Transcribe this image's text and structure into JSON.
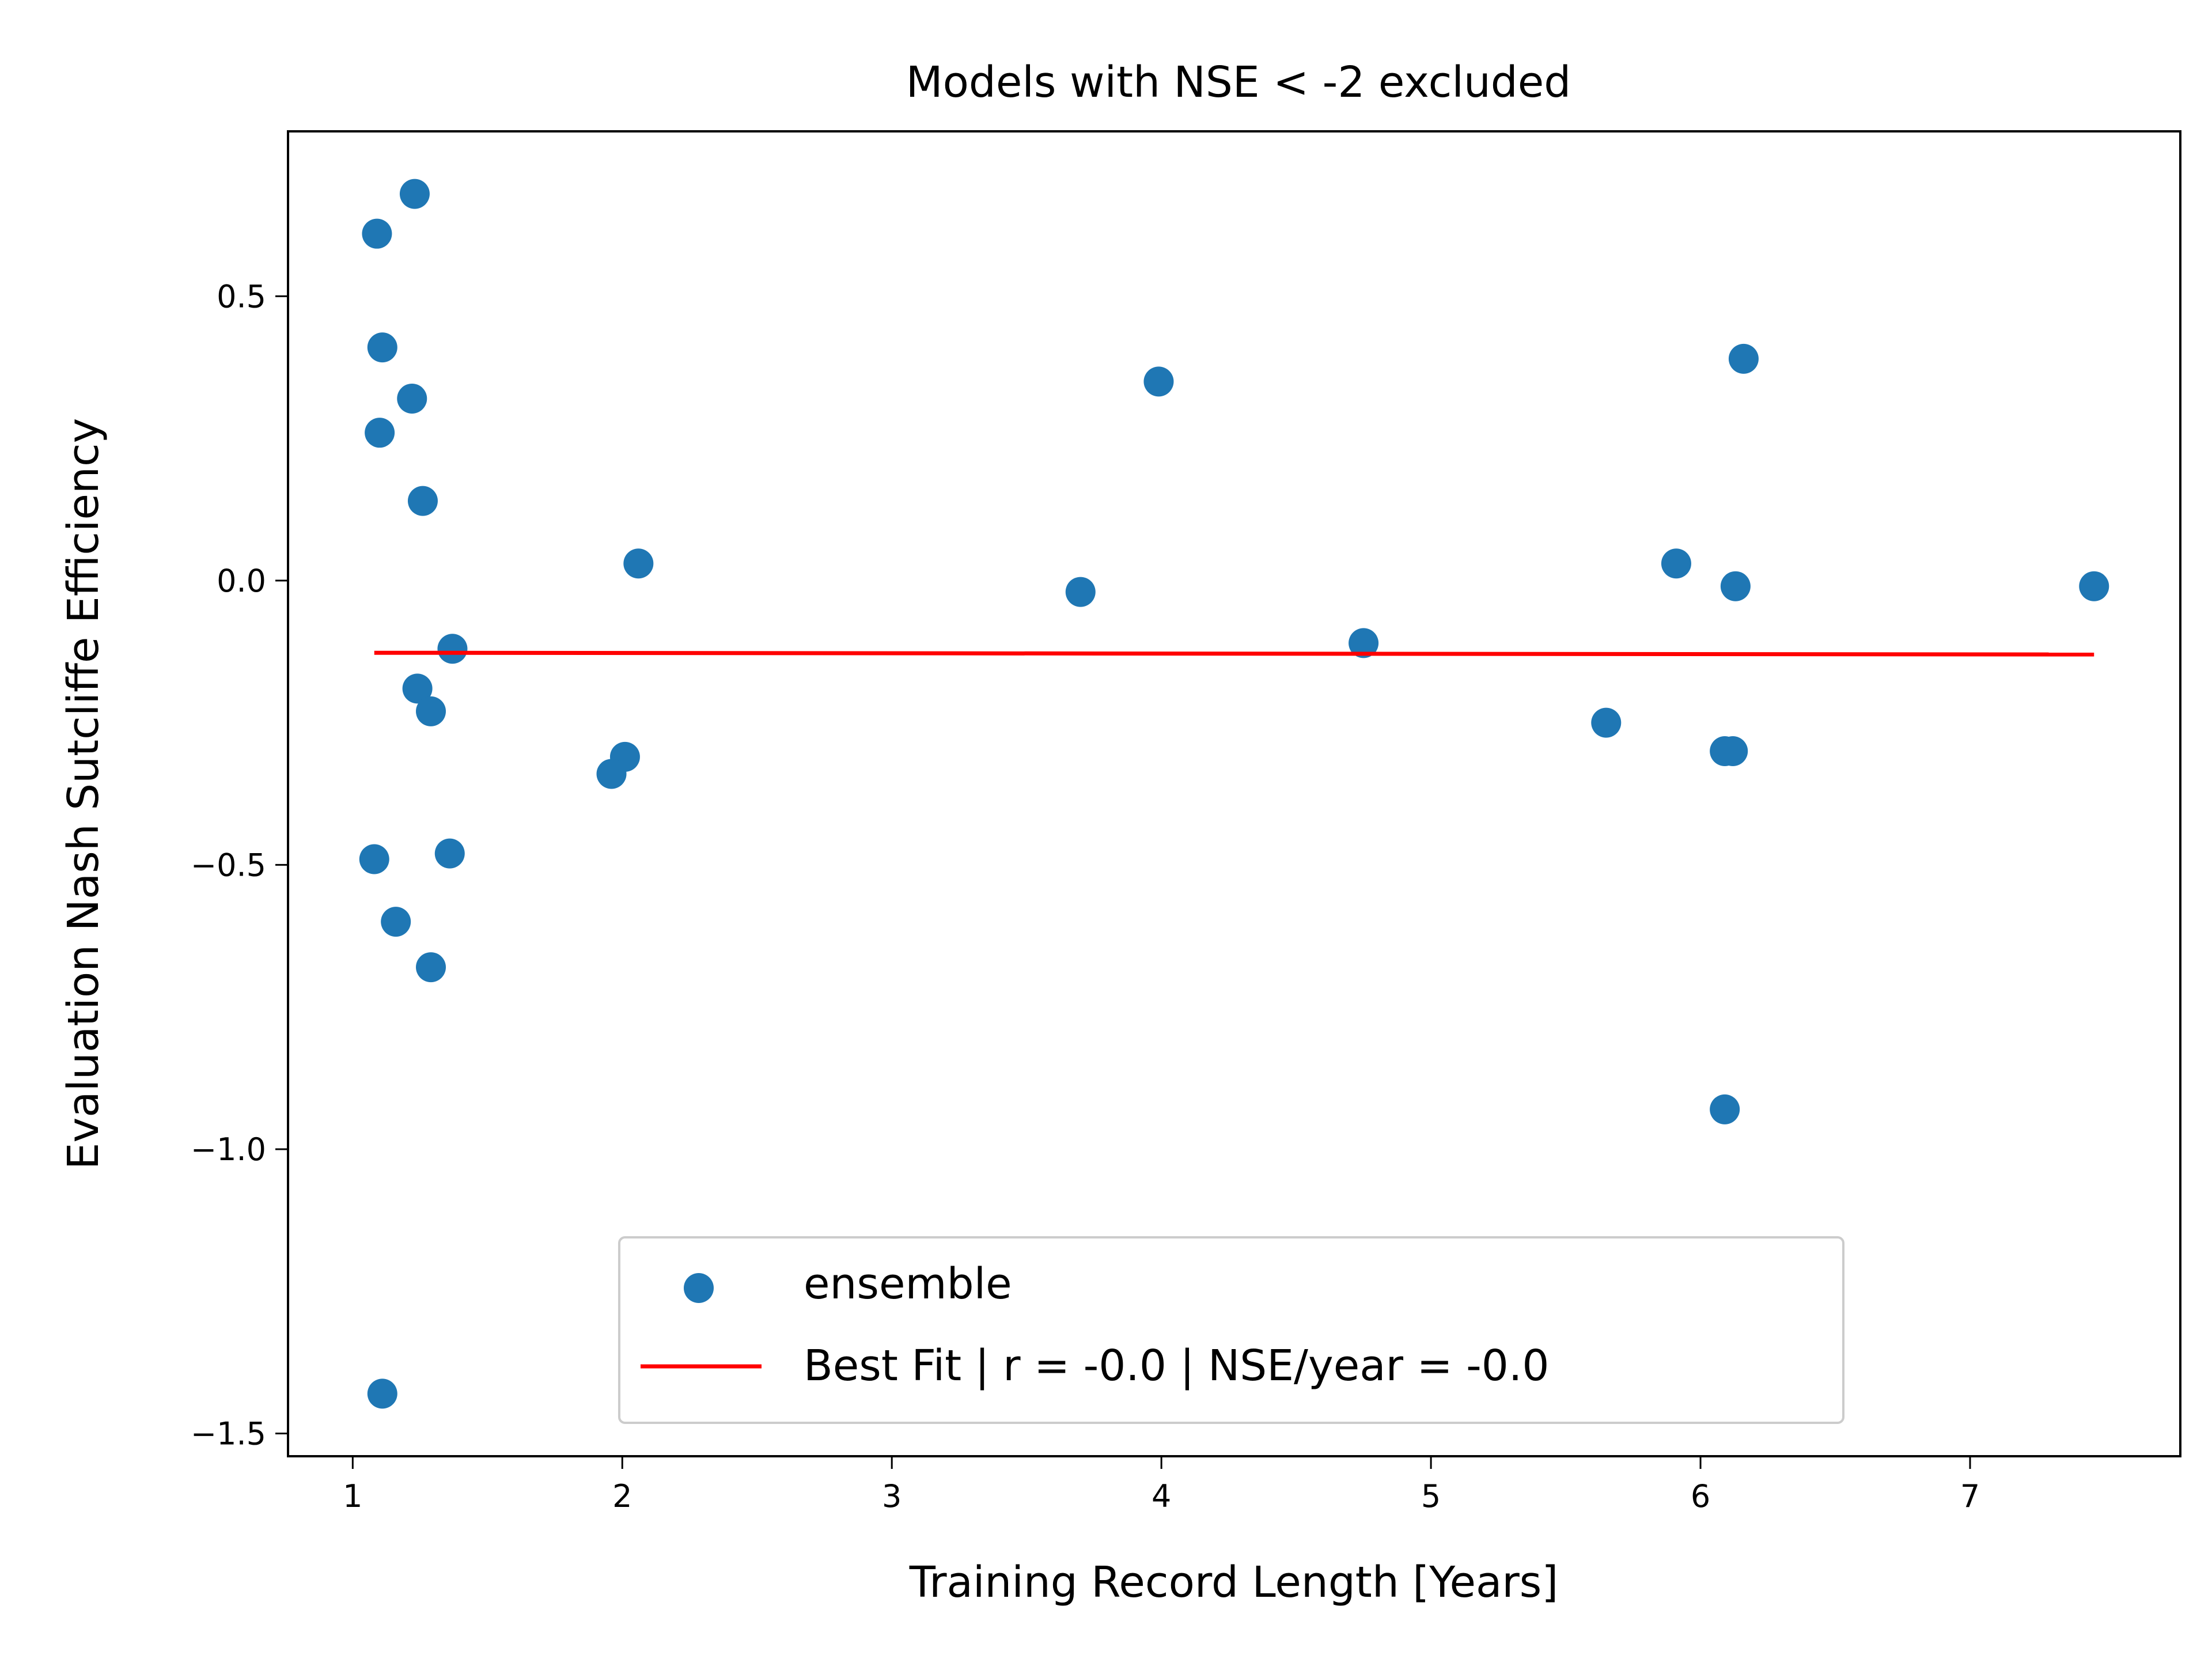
{
  "chart_data": {
    "type": "scatter",
    "title": "Models with NSE < -2 excluded",
    "xlabel": "Training Record Length [Years]",
    "ylabel": "Evaluation Nash Sutcliffe Efficiency",
    "xlim": [
      0.76,
      7.78
    ],
    "ylim": [
      -1.54,
      0.79
    ],
    "xticks": [
      1,
      2,
      3,
      4,
      5,
      6,
      7
    ],
    "xtick_labels": [
      "1",
      "2",
      "3",
      "4",
      "5",
      "6",
      "7"
    ],
    "yticks": [
      0.5,
      0.0,
      -0.5,
      -1.0,
      -1.5
    ],
    "ytick_labels": [
      "0.5",
      "0.0",
      "−0.5",
      "−1.0",
      "−1.5"
    ],
    "grid": false,
    "legend_position": "lower-center",
    "series": [
      {
        "name": "ensemble",
        "kind": "scatter",
        "color": "#1f77b4",
        "points": [
          [
            1.09,
            0.61
          ],
          [
            1.23,
            0.68
          ],
          [
            1.11,
            0.41
          ],
          [
            1.22,
            0.32
          ],
          [
            1.1,
            0.26
          ],
          [
            1.26,
            0.14
          ],
          [
            1.37,
            -0.12
          ],
          [
            1.24,
            -0.19
          ],
          [
            1.29,
            -0.23
          ],
          [
            1.08,
            -0.49
          ],
          [
            1.36,
            -0.48
          ],
          [
            1.16,
            -0.6
          ],
          [
            1.29,
            -0.68
          ],
          [
            1.11,
            -1.43
          ],
          [
            2.06,
            0.03
          ],
          [
            2.01,
            -0.31
          ],
          [
            1.96,
            -0.34
          ],
          [
            3.7,
            -0.02
          ],
          [
            3.99,
            0.35
          ],
          [
            4.75,
            -0.11
          ],
          [
            5.65,
            -0.25
          ],
          [
            5.91,
            0.03
          ],
          [
            6.13,
            -0.01
          ],
          [
            6.16,
            0.39
          ],
          [
            6.09,
            -0.3
          ],
          [
            6.12,
            -0.3
          ],
          [
            6.09,
            -0.93
          ],
          [
            7.46,
            -0.01
          ]
        ]
      },
      {
        "name": "Best Fit | r = -0.0 | NSE/year = -0.0",
        "kind": "line",
        "color": "#ff0000",
        "points": [
          [
            1.08,
            -0.127
          ],
          [
            7.46,
            -0.13
          ]
        ]
      }
    ]
  }
}
